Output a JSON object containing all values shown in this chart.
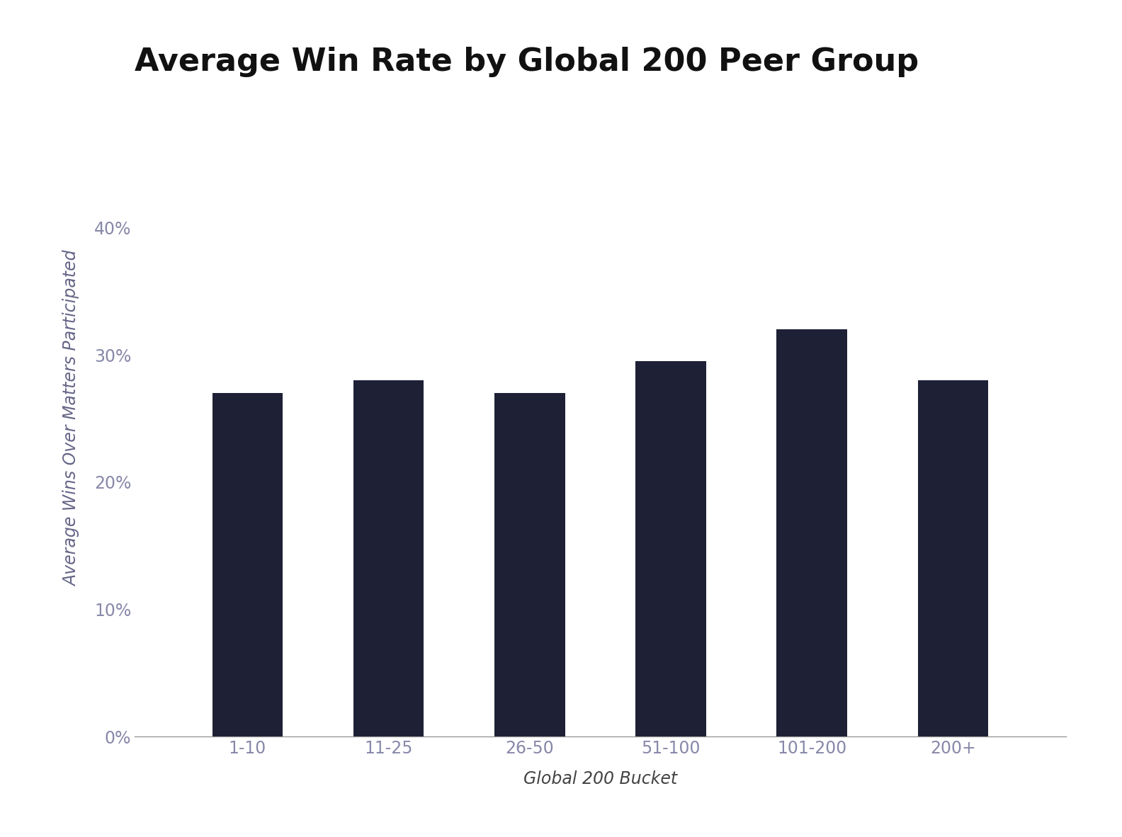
{
  "title": "Average Win Rate by Global 200 Peer Group",
  "categories": [
    "1-10",
    "11-25",
    "26-50",
    "51-100",
    "101-200",
    "200+"
  ],
  "values": [
    0.27,
    0.28,
    0.27,
    0.295,
    0.32,
    0.28
  ],
  "bar_color": "#1e2035",
  "background_color": "#ffffff",
  "xlabel": "Global 200 Bucket",
  "ylabel": "Average Wins Over Matters Participated",
  "ylim": [
    0,
    0.5
  ],
  "yticks": [
    0.0,
    0.1,
    0.2,
    0.3,
    0.4
  ],
  "title_fontsize": 32,
  "axis_label_fontsize": 17,
  "tick_fontsize": 17,
  "bar_width": 0.5,
  "tick_color": "#8888aa",
  "ylabel_color": "#666688",
  "xlabel_color": "#444444",
  "spine_color": "#999999",
  "title_color": "#111111"
}
